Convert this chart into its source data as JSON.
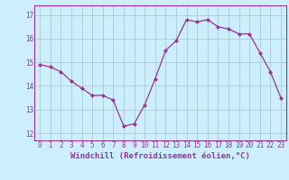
{
  "x": [
    0,
    1,
    2,
    3,
    4,
    5,
    6,
    7,
    8,
    9,
    10,
    11,
    12,
    13,
    14,
    15,
    16,
    17,
    18,
    19,
    20,
    21,
    22,
    23
  ],
  "y": [
    14.9,
    14.8,
    14.6,
    14.2,
    13.9,
    13.6,
    13.6,
    13.4,
    12.3,
    12.4,
    13.2,
    14.3,
    15.5,
    15.9,
    16.8,
    16.7,
    16.8,
    16.5,
    16.4,
    16.2,
    16.2,
    15.4,
    14.6,
    13.5
  ],
  "line_color": "#993399",
  "marker": "D",
  "marker_size": 2.0,
  "bg_color": "#cceeff",
  "grid_color": "#aacccc",
  "xlabel": "Windchill (Refroidissement éolien,°C)",
  "ylim": [
    11.7,
    17.4
  ],
  "xlim": [
    -0.5,
    23.5
  ],
  "yticks": [
    12,
    13,
    14,
    15,
    16,
    17
  ],
  "xticks": [
    0,
    1,
    2,
    3,
    4,
    5,
    6,
    7,
    8,
    9,
    10,
    11,
    12,
    13,
    14,
    15,
    16,
    17,
    18,
    19,
    20,
    21,
    22,
    23
  ],
  "tick_fontsize": 5.5,
  "xlabel_fontsize": 6.5,
  "line_width": 0.9
}
